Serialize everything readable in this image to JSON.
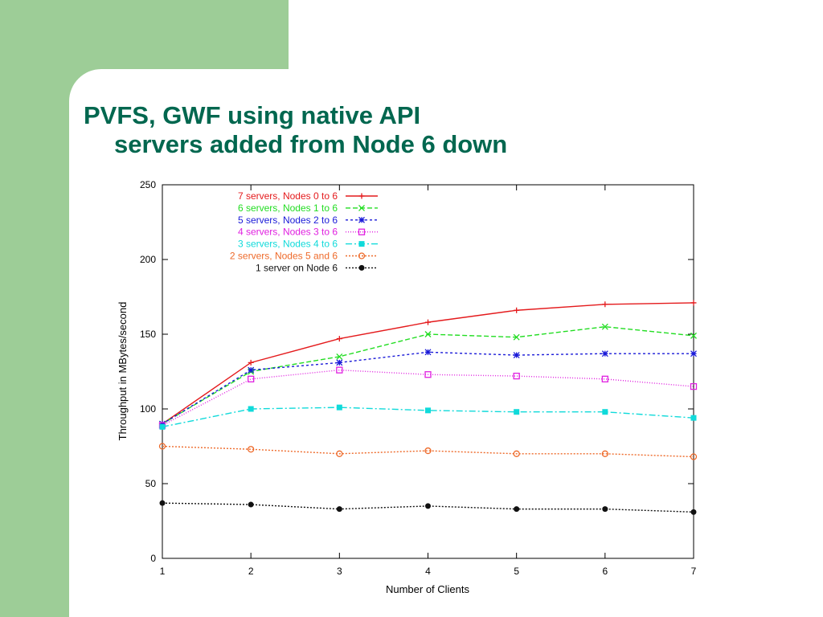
{
  "slide": {
    "title_line1": "PVFS, GWF using native API",
    "title_line2": "servers added from Node 6 down"
  },
  "chart_data": {
    "type": "line",
    "title": "",
    "xlabel": "Number of Clients",
    "ylabel": "Throughput in MBytes/second",
    "x": [
      1,
      2,
      3,
      4,
      5,
      6,
      7
    ],
    "xlim": [
      1,
      7
    ],
    "ylim": [
      0,
      250
    ],
    "xticks": [
      1,
      2,
      3,
      4,
      5,
      6,
      7
    ],
    "yticks": [
      0,
      50,
      100,
      150,
      200,
      250
    ],
    "grid": false,
    "legend_position": "top-left inside",
    "series": [
      {
        "name": "7 servers, Nodes 0 to 6",
        "color": "#e41a1c",
        "dash": "",
        "marker": "plus",
        "values": [
          90,
          131,
          147,
          158,
          166,
          170,
          171
        ]
      },
      {
        "name": "6 servers, Nodes 1 to 6",
        "color": "#22dd22",
        "dash": "6,3",
        "marker": "cross",
        "values": [
          90,
          125,
          135,
          150,
          148,
          155,
          149
        ]
      },
      {
        "name": "5 servers, Nodes 2 to 6",
        "color": "#1a1ad8",
        "dash": "3,3",
        "marker": "star",
        "values": [
          90,
          126,
          131,
          138,
          136,
          137,
          137
        ]
      },
      {
        "name": "4 servers, Nodes 3 to 6",
        "color": "#e020e0",
        "dash": "1,2",
        "marker": "square",
        "values": [
          89,
          120,
          126,
          123,
          122,
          120,
          115
        ]
      },
      {
        "name": "3 servers, Nodes 4 to 6",
        "color": "#10dada",
        "dash": "8,3,2,3",
        "marker": "filled-square",
        "values": [
          88,
          100,
          101,
          99,
          98,
          98,
          94
        ]
      },
      {
        "name": "2 servers, Nodes 5 and 6",
        "color": "#ee6a2a",
        "dash": "2,2",
        "marker": "circle",
        "values": [
          75,
          73,
          70,
          72,
          70,
          70,
          68
        ]
      },
      {
        "name": "1 server on Node 6",
        "color": "#111111",
        "dash": "2,2",
        "marker": "filled-circle",
        "values": [
          37,
          36,
          33,
          35,
          33,
          33,
          31
        ]
      }
    ]
  }
}
